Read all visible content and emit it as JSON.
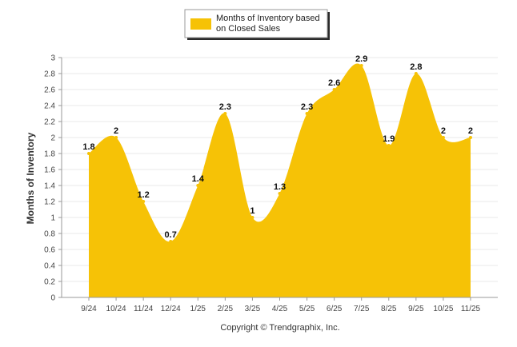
{
  "chart_data": {
    "type": "area",
    "categories": [
      "9/24",
      "10/24",
      "11/24",
      "12/24",
      "1/25",
      "2/25",
      "3/25",
      "4/25",
      "5/25",
      "6/25",
      "7/25",
      "8/25",
      "9/25",
      "10/25",
      "11/25"
    ],
    "series": [
      {
        "name": "Months of Inventory based on Closed Sales",
        "legend_lines": [
          "Months of Inventory based",
          "on Closed Sales"
        ],
        "values": [
          1.8,
          2,
          1.2,
          0.7,
          1.4,
          2.3,
          1,
          1.3,
          2.3,
          2.6,
          2.9,
          1.9,
          2.8,
          2,
          2
        ],
        "labels": [
          "1.8",
          "2",
          "1.2",
          "0.7",
          "1.4",
          "2.3",
          "1",
          "1.3",
          "2.3",
          "2.6",
          "2.9",
          "1.9",
          "2.8",
          "2",
          "2"
        ],
        "color": "#F6C206"
      }
    ],
    "ylabel": "Months of Inventory",
    "xlabel": "",
    "ylim": [
      0,
      3
    ],
    "yticks": [
      "0",
      "0.2",
      "0.4",
      "0.6",
      "0.8",
      "1",
      "1.2",
      "1.4",
      "1.6",
      "1.8",
      "2",
      "2.2",
      "2.4",
      "2.6",
      "2.8",
      "3"
    ],
    "grid": true,
    "legend_position": "top-center"
  },
  "footer": {
    "copyright": "Copyright © Trendgraphix, Inc."
  }
}
